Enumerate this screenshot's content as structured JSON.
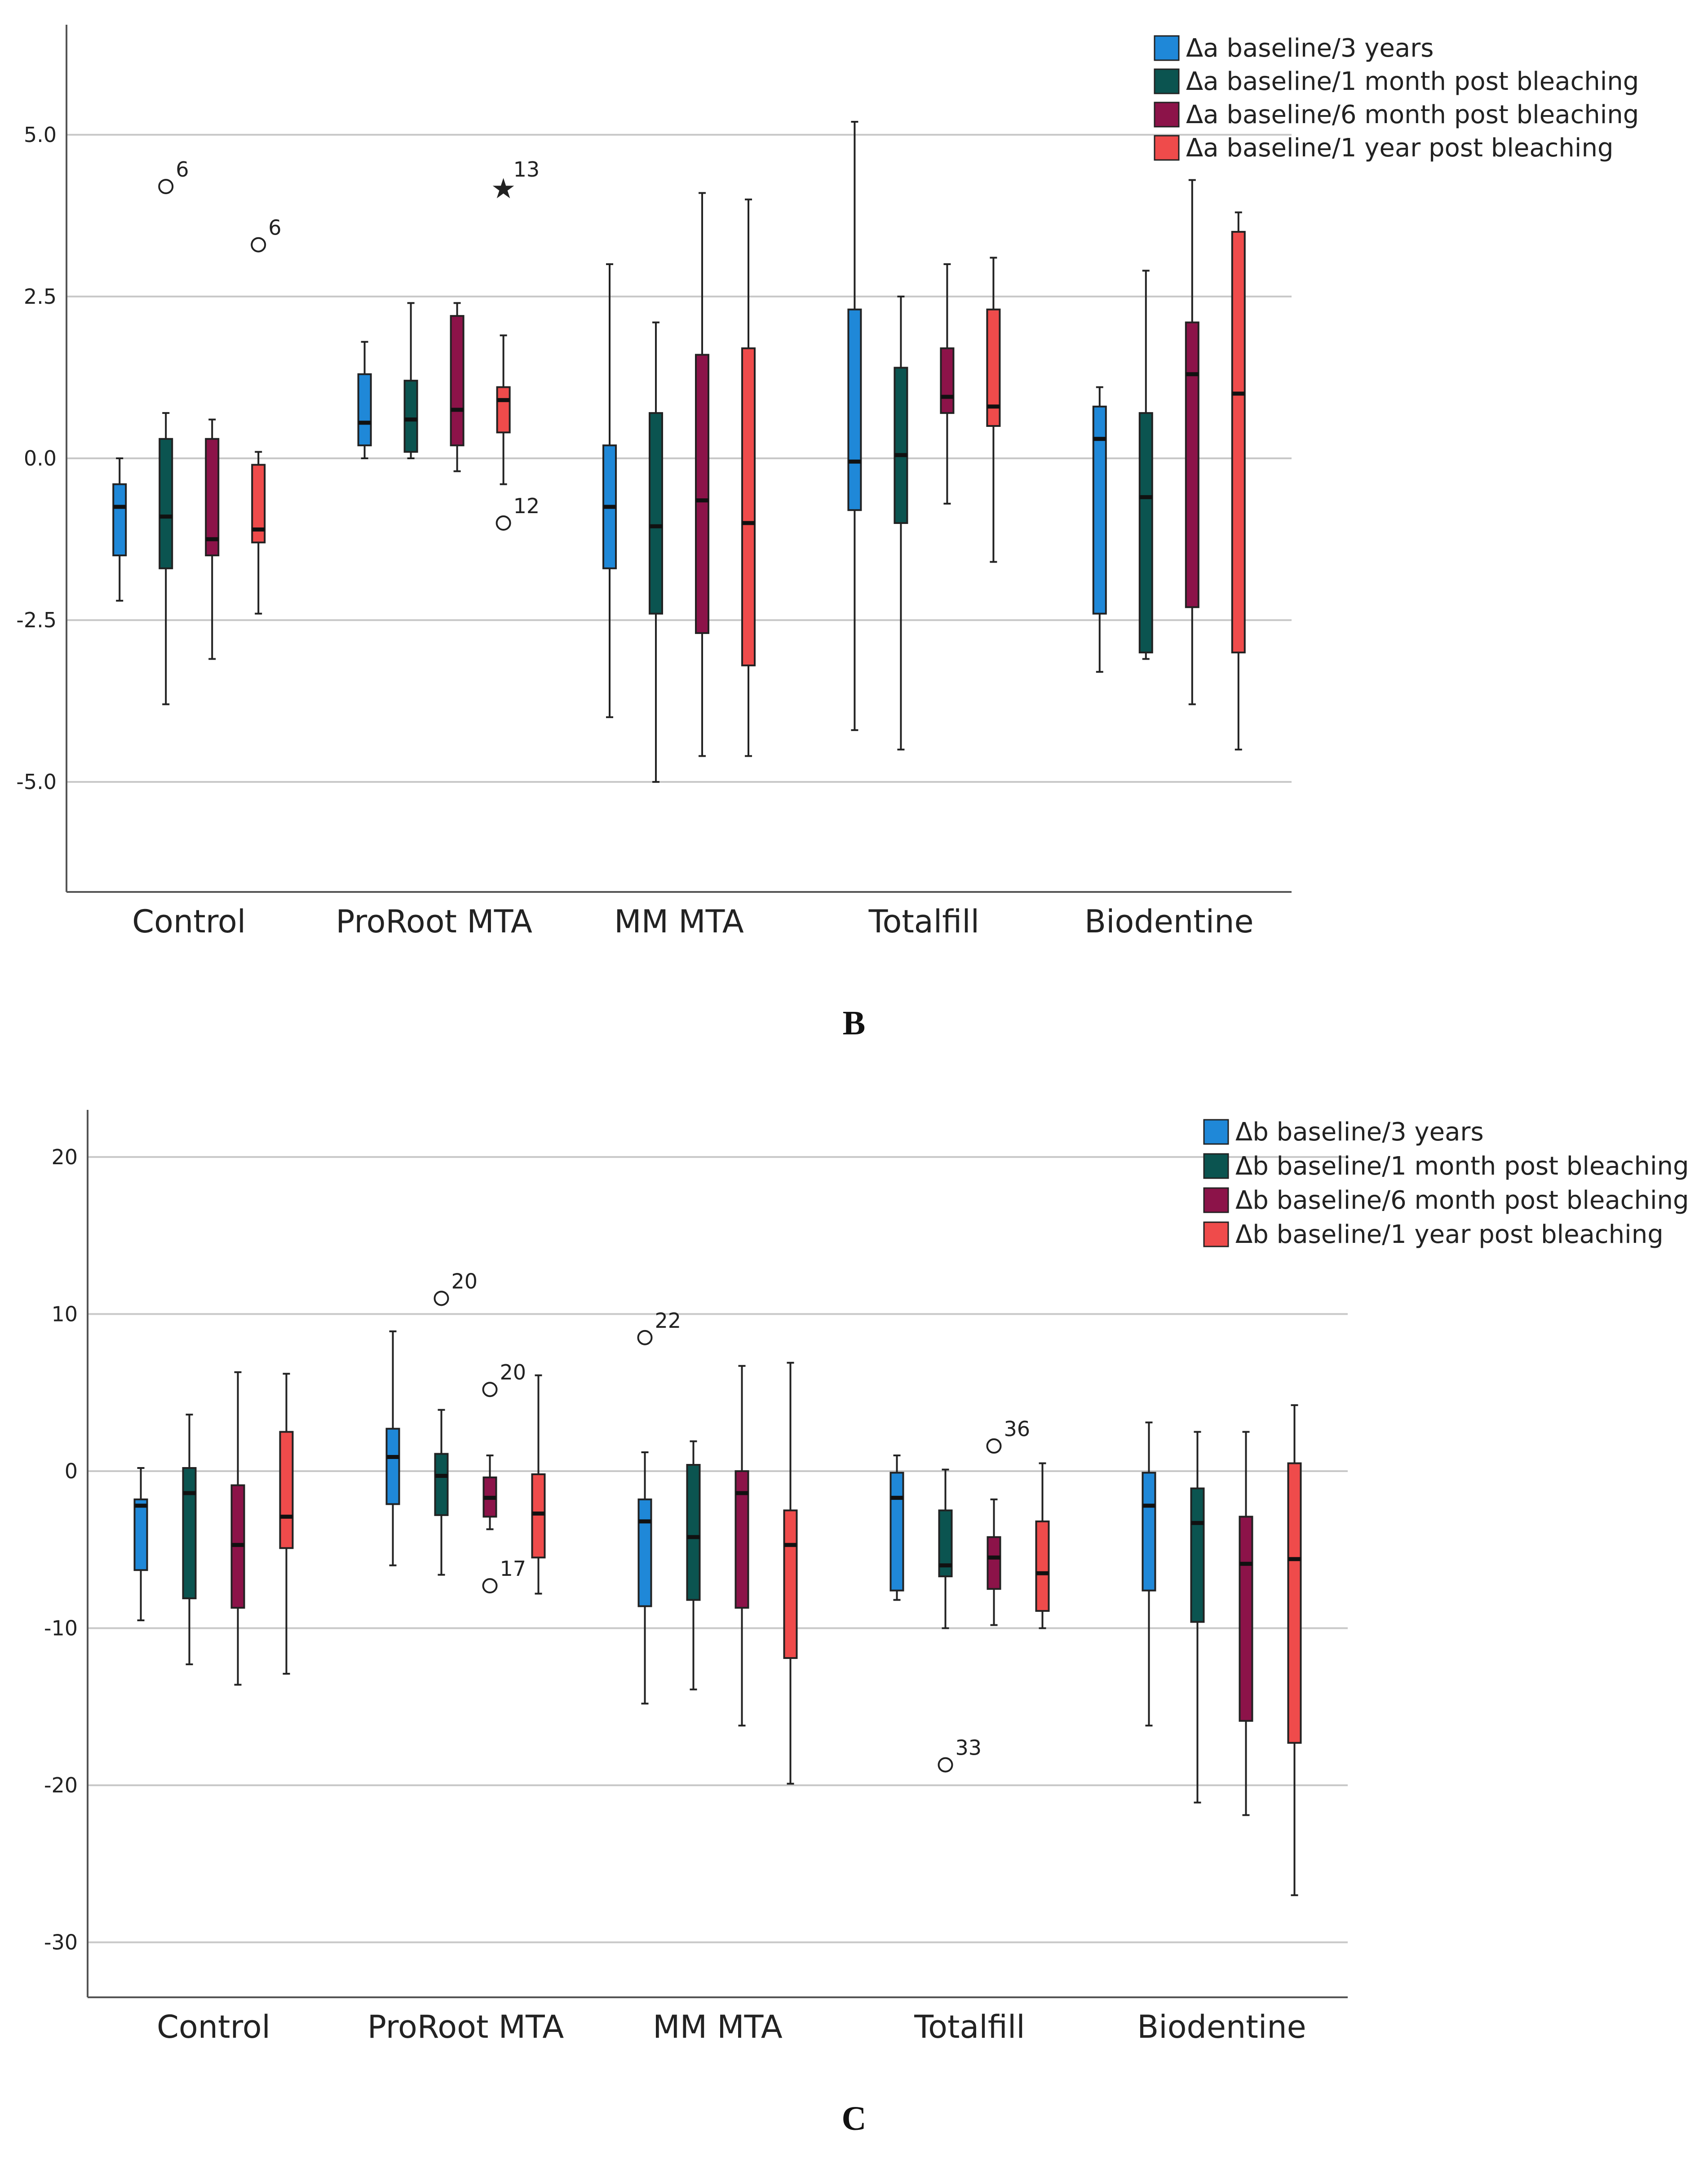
{
  "chart_data": [
    {
      "type": "boxplot",
      "panel_label": "",
      "categories": [
        "Control",
        "ProRoot MTA",
        "MM MTA",
        "Totalfill",
        "Biodentine"
      ],
      "ylim": [
        -6.7,
        6.7
      ],
      "yticks": [
        5.0,
        2.5,
        0.0,
        -2.5,
        -5.0
      ],
      "ytick_labels": [
        "5.0",
        "2.5",
        "0.0",
        "-2.5",
        "-5.0"
      ],
      "legend": [
        "Δa baseline/3 years",
        "Δa baseline/1 month post bleaching",
        "Δa baseline/6 month post bleaching",
        "Δa baseline/1 year post bleaching"
      ],
      "colors": [
        "#1f88d8",
        "#0b5450",
        "#8c1349",
        "#ef4b4b"
      ],
      "boxes": [
        [
          {
            "low": -2.2,
            "q1": -1.5,
            "med": -0.75,
            "q3": -0.4,
            "high": 0.0
          },
          {
            "low": -3.8,
            "q1": -1.7,
            "med": -0.9,
            "q3": 0.3,
            "high": 0.7
          },
          {
            "low": -3.1,
            "q1": -1.5,
            "med": -1.25,
            "q3": 0.3,
            "high": 0.6
          },
          {
            "low": -2.4,
            "q1": -1.3,
            "med": -1.1,
            "q3": -0.1,
            "high": 0.1
          }
        ],
        [
          {
            "low": 0.0,
            "q1": 0.2,
            "med": 0.55,
            "q3": 1.3,
            "high": 1.8
          },
          {
            "low": 0.0,
            "q1": 0.1,
            "med": 0.6,
            "q3": 1.2,
            "high": 2.4
          },
          {
            "low": -0.2,
            "q1": 0.2,
            "med": 0.75,
            "q3": 2.2,
            "high": 2.4
          },
          {
            "low": -0.4,
            "q1": 0.4,
            "med": 0.9,
            "q3": 1.1,
            "high": 1.9
          }
        ],
        [
          {
            "low": -4.0,
            "q1": -1.7,
            "med": -0.75,
            "q3": 0.2,
            "high": 3.0
          },
          {
            "low": -5.0,
            "q1": -2.4,
            "med": -1.05,
            "q3": 0.7,
            "high": 2.1
          },
          {
            "low": -4.6,
            "q1": -2.7,
            "med": -0.65,
            "q3": 1.6,
            "high": 4.1
          },
          {
            "low": -4.6,
            "q1": -3.2,
            "med": -1.0,
            "q3": 1.7,
            "high": 4.0
          }
        ],
        [
          {
            "low": -4.2,
            "q1": -0.8,
            "med": -0.05,
            "q3": 2.3,
            "high": 5.2
          },
          {
            "low": -4.5,
            "q1": -1.0,
            "med": 0.05,
            "q3": 1.4,
            "high": 2.5
          },
          {
            "low": -0.7,
            "q1": 0.7,
            "med": 0.95,
            "q3": 1.7,
            "high": 3.0
          },
          {
            "low": -1.6,
            "q1": 0.5,
            "med": 0.8,
            "q3": 2.3,
            "high": 3.1
          }
        ],
        [
          {
            "low": -3.3,
            "q1": -2.4,
            "med": 0.3,
            "q3": 0.8,
            "high": 1.1
          },
          {
            "low": -3.1,
            "q1": -3.0,
            "med": -0.6,
            "q3": 0.7,
            "high": 2.9
          },
          {
            "low": -3.8,
            "q1": -2.3,
            "med": 1.3,
            "q3": 2.1,
            "high": 4.3
          },
          {
            "low": -4.5,
            "q1": -3.0,
            "med": 1.0,
            "q3": 3.5,
            "high": 3.8
          }
        ]
      ],
      "outliers": [
        {
          "category": 0,
          "series": 1,
          "value": 4.2,
          "label": "6",
          "symbol": "circle"
        },
        {
          "category": 0,
          "series": 3,
          "value": 3.3,
          "label": "6",
          "symbol": "circle"
        },
        {
          "category": 1,
          "series": 3,
          "value": 4.2,
          "label": "13",
          "symbol": "star"
        },
        {
          "category": 1,
          "series": 3,
          "value": -1.0,
          "label": "12",
          "symbol": "circle"
        }
      ]
    },
    {
      "type": "boxplot",
      "panel_label": "C",
      "categories": [
        "Control",
        "ProRoot MTA",
        "MM MTA",
        "Totalfill",
        "Biodentine"
      ],
      "ylim": [
        -33.5,
        23.0
      ],
      "yticks": [
        20,
        10,
        0,
        -10,
        -20,
        -30
      ],
      "ytick_labels": [
        "20",
        "10",
        "0",
        "-10",
        "-20",
        "-30"
      ],
      "legend": [
        "Δb baseline/3 years",
        "Δb baseline/1 month post bleaching",
        "Δb baseline/6 month post bleaching",
        "Δb baseline/1 year post bleaching"
      ],
      "colors": [
        "#1f88d8",
        "#0b5450",
        "#8c1349",
        "#ef4b4b"
      ],
      "boxes": [
        [
          {
            "low": -9.5,
            "q1": -6.3,
            "med": -2.2,
            "q3": -1.8,
            "high": 0.2
          },
          {
            "low": -12.3,
            "q1": -8.1,
            "med": -1.4,
            "q3": 0.2,
            "high": 3.6
          },
          {
            "low": -13.6,
            "q1": -8.7,
            "med": -4.7,
            "q3": -0.9,
            "high": 6.3
          },
          {
            "low": -12.9,
            "q1": -4.9,
            "med": -2.9,
            "q3": 2.5,
            "high": 6.2
          }
        ],
        [
          {
            "low": -6.0,
            "q1": -2.1,
            "med": 0.9,
            "q3": 2.7,
            "high": 8.9
          },
          {
            "low": -6.6,
            "q1": -2.8,
            "med": -0.3,
            "q3": 1.1,
            "high": 3.9
          },
          {
            "low": -3.7,
            "q1": -2.9,
            "med": -1.7,
            "q3": -0.4,
            "high": 1.0
          },
          {
            "low": -7.8,
            "q1": -5.5,
            "med": -2.7,
            "q3": -0.2,
            "high": 6.1
          }
        ],
        [
          {
            "low": -14.8,
            "q1": -8.6,
            "med": -3.2,
            "q3": -1.8,
            "high": 1.2
          },
          {
            "low": -13.9,
            "q1": -8.2,
            "med": -4.2,
            "q3": 0.4,
            "high": 1.9
          },
          {
            "low": -16.2,
            "q1": -8.7,
            "med": -1.4,
            "q3": 0.0,
            "high": 6.7
          },
          {
            "low": -19.9,
            "q1": -11.9,
            "med": -4.7,
            "q3": -2.5,
            "high": 6.9
          }
        ],
        [
          {
            "low": -8.2,
            "q1": -7.6,
            "med": -1.7,
            "q3": -0.1,
            "high": 1.0
          },
          {
            "low": -10.0,
            "q1": -6.7,
            "med": -6.0,
            "q3": -2.5,
            "high": 0.1
          },
          {
            "low": -9.8,
            "q1": -7.5,
            "med": -5.5,
            "q3": -4.2,
            "high": -1.8
          },
          {
            "low": -10.0,
            "q1": -8.9,
            "med": -6.5,
            "q3": -3.2,
            "high": 0.5
          }
        ],
        [
          {
            "low": -16.2,
            "q1": -7.6,
            "med": -2.2,
            "q3": -0.1,
            "high": 3.1
          },
          {
            "low": -21.1,
            "q1": -9.6,
            "med": -3.3,
            "q3": -1.1,
            "high": 2.5
          },
          {
            "low": -21.9,
            "q1": -15.9,
            "med": -5.9,
            "q3": -2.9,
            "high": 2.5
          },
          {
            "low": -27.0,
            "q1": -17.3,
            "med": -5.6,
            "q3": 0.5,
            "high": 4.2
          }
        ]
      ],
      "outliers": [
        {
          "category": 1,
          "series": 1,
          "value": 11.0,
          "label": "20",
          "symbol": "circle"
        },
        {
          "category": 1,
          "series": 2,
          "value": 5.2,
          "label": "20",
          "symbol": "circle"
        },
        {
          "category": 1,
          "series": 2,
          "value": -7.3,
          "label": "17",
          "symbol": "circle"
        },
        {
          "category": 2,
          "series": 0,
          "value": 8.5,
          "label": "22",
          "symbol": "circle"
        },
        {
          "category": 3,
          "series": 2,
          "value": 1.6,
          "label": "36",
          "symbol": "circle"
        },
        {
          "category": 3,
          "series": 1,
          "value": -18.7,
          "label": "33",
          "symbol": "circle"
        }
      ]
    }
  ],
  "panel_labels": {
    "b": "B",
    "c": "C"
  }
}
